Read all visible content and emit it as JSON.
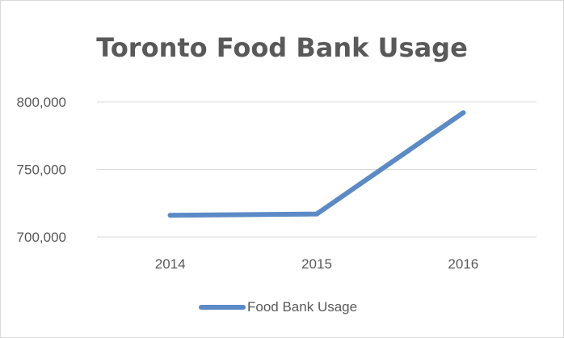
{
  "chart_data": {
    "type": "line",
    "title": "Toronto Food Bank Usage",
    "categories": [
      "2014",
      "2015",
      "2016"
    ],
    "series": [
      {
        "name": "Food Bank Usage",
        "values": [
          716000,
          717000,
          792000
        ],
        "color": "#5b8ac6"
      }
    ],
    "ylim": [
      700000,
      800000
    ],
    "yticks": [
      700000,
      750000,
      800000
    ],
    "ytick_labels": [
      "700,000",
      "750,000",
      "800,000"
    ],
    "xlabel": "",
    "ylabel": "",
    "grid": true,
    "legend": "bottom"
  }
}
